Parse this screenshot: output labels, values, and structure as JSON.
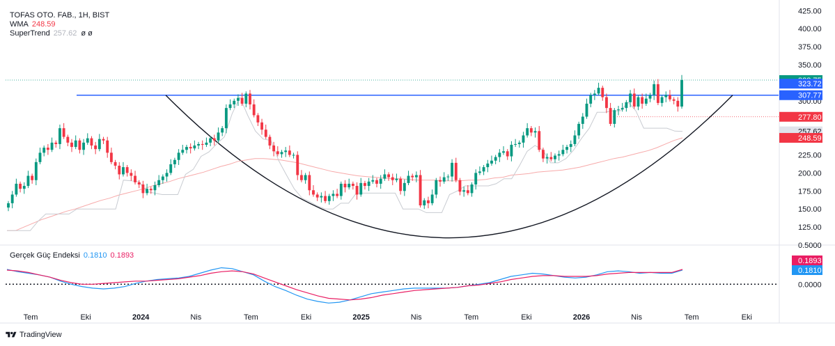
{
  "header": {
    "symbol": "TOFAS OTO. FAB., 1H, BIST",
    "wma_label": "WMA",
    "wma_value": "248.59",
    "st_label": "SuperTrend",
    "st_value": "257.62",
    "st_extra": "ø ø",
    "osc_label": "Gerçek Güç Endeksi",
    "osc_value1": "0.1810",
    "osc_value2": "0.1893"
  },
  "footer": {
    "brand": "TradingView"
  },
  "colors": {
    "up": "#089981",
    "down": "#f23645",
    "wma": "#f7a9a9",
    "supertrend": "#c8cbd1",
    "resistance": "#2962ff",
    "cup": "#131722",
    "osc_fast": "#2196f3",
    "osc_slow": "#e91e63"
  },
  "chart_data": [
    {
      "type": "candlestick",
      "title": "TOFAS OTO. FAB., 1H, BIST",
      "x_ticks": [
        "Tem",
        "Eki",
        "2024",
        "Nis",
        "Tem",
        "Eki",
        "2025",
        "Nis",
        "Tem",
        "Eki",
        "2026",
        "Nis",
        "Tem",
        "Eki"
      ],
      "bold_ticks": [
        "2024",
        "2025",
        "2026"
      ],
      "y_ticks": [
        "125.00",
        "150.00",
        "175.00",
        "200.00",
        "225.00",
        "250.00",
        "275.00",
        "300.00",
        "325.00",
        "350.00",
        "375.00",
        "400.00",
        "425.00"
      ],
      "ylim": [
        100,
        432
      ],
      "price_labels": [
        {
          "value": 328.75,
          "text": "328.75",
          "color": "#089981"
        },
        {
          "value": 323.72,
          "text": "323.72",
          "color": "#2962ff"
        },
        {
          "value": 307.77,
          "text": "307.77",
          "color": "#2962ff"
        },
        {
          "value": 277.8,
          "text": "277.80",
          "color": "#f23645"
        },
        {
          "value": 257.62,
          "text": "257.62",
          "color": "#e0e3eb"
        },
        {
          "value": 248.59,
          "text": "248.59",
          "color": "#f23645"
        }
      ],
      "resistance_level": 307.77,
      "cup_bottom": 110,
      "closes": [
        158,
        170,
        185,
        178,
        182,
        196,
        190,
        215,
        228,
        235,
        232,
        242,
        240,
        262,
        250,
        242,
        236,
        245,
        232,
        242,
        248,
        238,
        233,
        247,
        245,
        228,
        215,
        210,
        198,
        208,
        200,
        196,
        187,
        184,
        172,
        178,
        176,
        183,
        190,
        195,
        200,
        212,
        218,
        228,
        232,
        236,
        234,
        238,
        240,
        239,
        242,
        248,
        245,
        256,
        262,
        290,
        295,
        300,
        304,
        296,
        310,
        295,
        280,
        270,
        260,
        250,
        238,
        230,
        226,
        229,
        231,
        225,
        225,
        197,
        190,
        197,
        176,
        170,
        166,
        168,
        161,
        168,
        171,
        168,
        185,
        180,
        185,
        182,
        170,
        186,
        182,
        188,
        190,
        185,
        192,
        198,
        194,
        190,
        192,
        175,
        186,
        196,
        194,
        197,
        155,
        162,
        158,
        170,
        190,
        188,
        194,
        195,
        214,
        190,
        174,
        176,
        172,
        184,
        200,
        202,
        208,
        213,
        217,
        222,
        228,
        230,
        223,
        239,
        240,
        242,
        252,
        262,
        256,
        258,
        232,
        220,
        222,
        219,
        224,
        226,
        232,
        236,
        240,
        252,
        268,
        278,
        296,
        308,
        310,
        318,
        305,
        290,
        268,
        287,
        288,
        290,
        298,
        310,
        292,
        305,
        296,
        303,
        308,
        323,
        297,
        305,
        308,
        302,
        300,
        292,
        328.75
      ],
      "wma": [
        120,
        120,
        125,
        130,
        135,
        139,
        143,
        147,
        150,
        154,
        158,
        162,
        165,
        169,
        172,
        175,
        178,
        182,
        185,
        188,
        192,
        195,
        198,
        201,
        205,
        209,
        212,
        216,
        218,
        220,
        220,
        219,
        218,
        216,
        214,
        211,
        208,
        205,
        202,
        200,
        198,
        196,
        195,
        194,
        193,
        192,
        192,
        191,
        190,
        190,
        190,
        189,
        189,
        189,
        190,
        190,
        191,
        193,
        194,
        197,
        198,
        199,
        201,
        202,
        203,
        204,
        206,
        208,
        211,
        214,
        217,
        220,
        222,
        225,
        228,
        231,
        235,
        240,
        245,
        248.59
      ],
      "supertrend": [
        120,
        120,
        120,
        120,
        133,
        143,
        143,
        143,
        143,
        150,
        150,
        150,
        150,
        150,
        150,
        190,
        189,
        188,
        174,
        172,
        170,
        170,
        170,
        198,
        205,
        223,
        229,
        240,
        250,
        282,
        305,
        280,
        258,
        247,
        245,
        217,
        197,
        178,
        165,
        160,
        154,
        150,
        150,
        158,
        158,
        172,
        172,
        172,
        172,
        172,
        172,
        150,
        150,
        150,
        145,
        145,
        145,
        170,
        175,
        182,
        182,
        182,
        182,
        185,
        192,
        192,
        210,
        230,
        238,
        232,
        214,
        214,
        220,
        232,
        248,
        262,
        284,
        284,
        286,
        286,
        298,
        286,
        262,
        262,
        262,
        262,
        258,
        257.62
      ]
    },
    {
      "type": "line",
      "title": "Gerçek Güç Endeksi",
      "y_ticks": [
        "0.5000",
        "0.0000"
      ],
      "ylim": [
        -0.3,
        0.5
      ],
      "zero_line": 0,
      "price_labels": [
        {
          "value": 0.1893,
          "text": "0.1893",
          "color": "#e91e63"
        },
        {
          "value": 0.181,
          "text": "0.1810",
          "color": "#2196f3"
        }
      ],
      "series": [
        {
          "name": "0.1810",
          "color": "#2196f3",
          "values": [
            0.19,
            0.16,
            0.14,
            0.12,
            0.09,
            0.04,
            0.0,
            -0.03,
            -0.05,
            -0.06,
            -0.05,
            -0.03,
            0.01,
            0.04,
            0.06,
            0.07,
            0.08,
            0.1,
            0.14,
            0.18,
            0.21,
            0.2,
            0.16,
            0.12,
            0.04,
            -0.03,
            -0.08,
            -0.14,
            -0.19,
            -0.22,
            -0.24,
            -0.23,
            -0.2,
            -0.16,
            -0.12,
            -0.1,
            -0.08,
            -0.06,
            -0.05,
            -0.05,
            -0.05,
            -0.05,
            -0.04,
            -0.02,
            0.0,
            0.02,
            0.06,
            0.1,
            0.12,
            0.14,
            0.13,
            0.11,
            0.09,
            0.08,
            0.09,
            0.12,
            0.16,
            0.17,
            0.16,
            0.14,
            0.15,
            0.14,
            0.14,
            0.181
          ]
        },
        {
          "name": "0.1893",
          "color": "#e91e63",
          "values": [
            0.18,
            0.17,
            0.15,
            0.12,
            0.09,
            0.05,
            0.02,
            0.0,
            0.0,
            0.01,
            0.02,
            0.03,
            0.04,
            0.04,
            0.05,
            0.06,
            0.07,
            0.09,
            0.11,
            0.14,
            0.16,
            0.17,
            0.16,
            0.13,
            0.08,
            0.03,
            -0.02,
            -0.07,
            -0.11,
            -0.15,
            -0.18,
            -0.19,
            -0.2,
            -0.19,
            -0.17,
            -0.14,
            -0.12,
            -0.1,
            -0.08,
            -0.07,
            -0.06,
            -0.05,
            -0.04,
            -0.02,
            -0.01,
            0.01,
            0.03,
            0.06,
            0.08,
            0.1,
            0.11,
            0.11,
            0.1,
            0.1,
            0.1,
            0.11,
            0.13,
            0.14,
            0.15,
            0.15,
            0.15,
            0.15,
            0.15,
            0.1893
          ]
        }
      ]
    }
  ]
}
